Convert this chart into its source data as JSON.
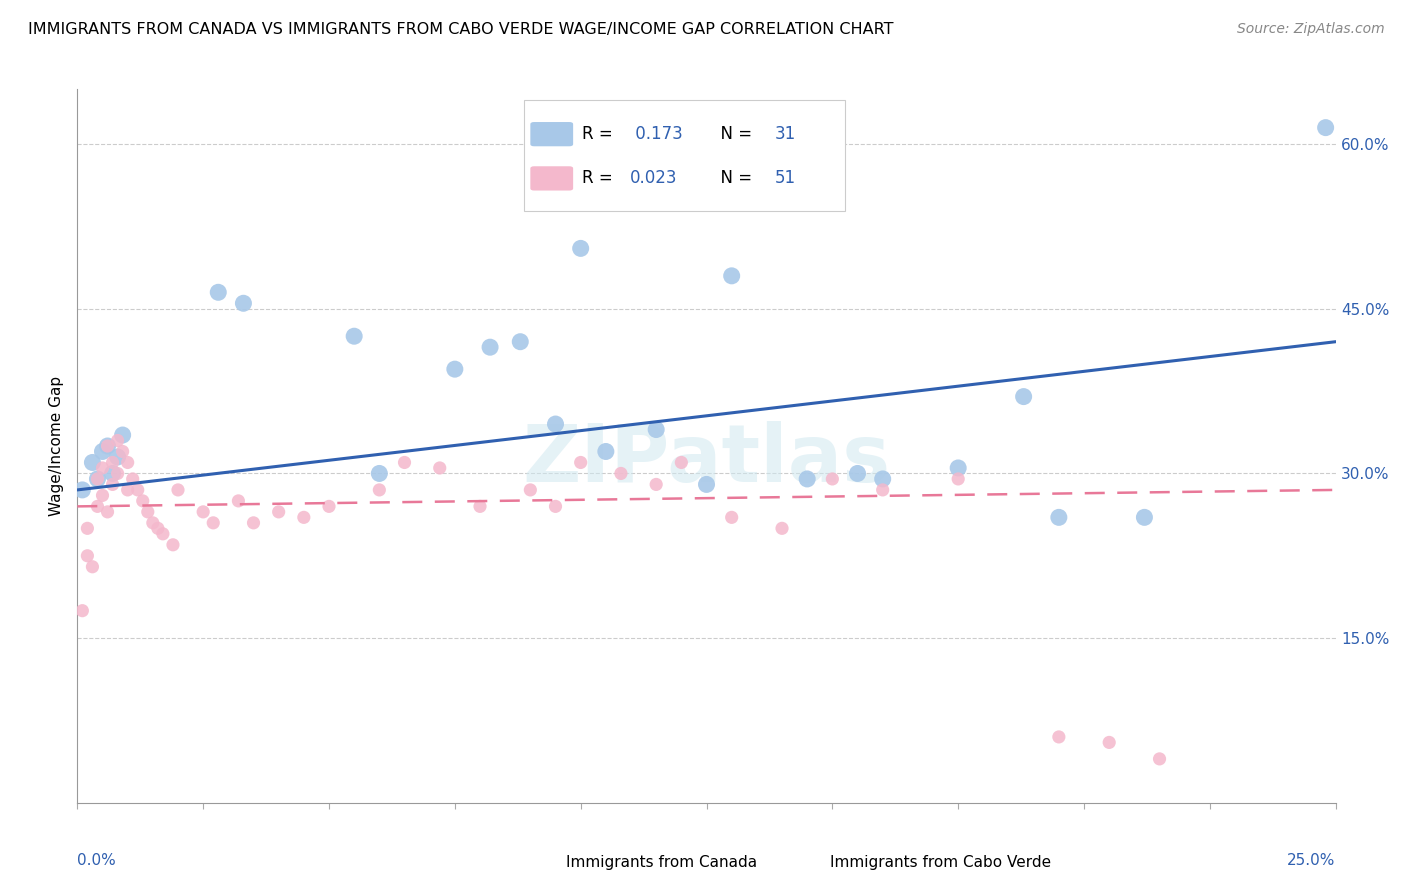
{
  "title": "IMMIGRANTS FROM CANADA VS IMMIGRANTS FROM CABO VERDE WAGE/INCOME GAP CORRELATION CHART",
  "source": "Source: ZipAtlas.com",
  "ylabel": "Wage/Income Gap",
  "right_yticklabels": [
    "15.0%",
    "30.0%",
    "45.0%",
    "60.0%"
  ],
  "right_ytick_vals": [
    0.15,
    0.3,
    0.45,
    0.6
  ],
  "legend_label_canada": "Immigrants from Canada",
  "legend_label_caboverde": "Immigrants from Cabo Verde",
  "canada_color": "#a8c8e8",
  "caboverde_color": "#f4b8cc",
  "canada_line_color": "#3060b0",
  "caboverde_line_color": "#e87898",
  "watermark": "ZIPatlas",
  "xlim": [
    0.0,
    0.25
  ],
  "ylim": [
    0.0,
    0.65
  ],
  "canada_x": [
    0.001,
    0.003,
    0.004,
    0.005,
    0.006,
    0.007,
    0.008,
    0.009,
    0.028,
    0.033,
    0.055,
    0.06,
    0.075,
    0.082,
    0.088,
    0.095,
    0.1,
    0.105,
    0.115,
    0.125,
    0.13,
    0.145,
    0.155,
    0.16,
    0.175,
    0.188,
    0.195,
    0.212,
    0.248
  ],
  "canada_y": [
    0.285,
    0.31,
    0.295,
    0.32,
    0.325,
    0.3,
    0.315,
    0.335,
    0.465,
    0.455,
    0.425,
    0.3,
    0.395,
    0.415,
    0.42,
    0.345,
    0.505,
    0.32,
    0.34,
    0.29,
    0.48,
    0.295,
    0.3,
    0.295,
    0.305,
    0.37,
    0.26,
    0.26,
    0.615
  ],
  "caboverde_x": [
    0.001,
    0.002,
    0.002,
    0.003,
    0.004,
    0.004,
    0.005,
    0.005,
    0.006,
    0.006,
    0.007,
    0.007,
    0.008,
    0.008,
    0.009,
    0.01,
    0.01,
    0.011,
    0.012,
    0.013,
    0.014,
    0.015,
    0.016,
    0.017,
    0.019,
    0.02,
    0.025,
    0.027,
    0.032,
    0.035,
    0.04,
    0.045,
    0.05,
    0.06,
    0.065,
    0.072,
    0.08,
    0.09,
    0.095,
    0.1,
    0.108,
    0.115,
    0.12,
    0.13,
    0.14,
    0.15,
    0.16,
    0.175,
    0.195,
    0.205,
    0.215
  ],
  "caboverde_y": [
    0.175,
    0.25,
    0.225,
    0.215,
    0.295,
    0.27,
    0.305,
    0.28,
    0.265,
    0.325,
    0.31,
    0.29,
    0.33,
    0.3,
    0.32,
    0.31,
    0.285,
    0.295,
    0.285,
    0.275,
    0.265,
    0.255,
    0.25,
    0.245,
    0.235,
    0.285,
    0.265,
    0.255,
    0.275,
    0.255,
    0.265,
    0.26,
    0.27,
    0.285,
    0.31,
    0.305,
    0.27,
    0.285,
    0.27,
    0.31,
    0.3,
    0.29,
    0.31,
    0.26,
    0.25,
    0.295,
    0.285,
    0.295,
    0.06,
    0.055,
    0.04
  ],
  "canada_trend_x": [
    0.0,
    0.25
  ],
  "canada_trend_y": [
    0.285,
    0.42
  ],
  "caboverde_trend_x": [
    0.0,
    0.25
  ],
  "caboverde_trend_y": [
    0.27,
    0.285
  ]
}
